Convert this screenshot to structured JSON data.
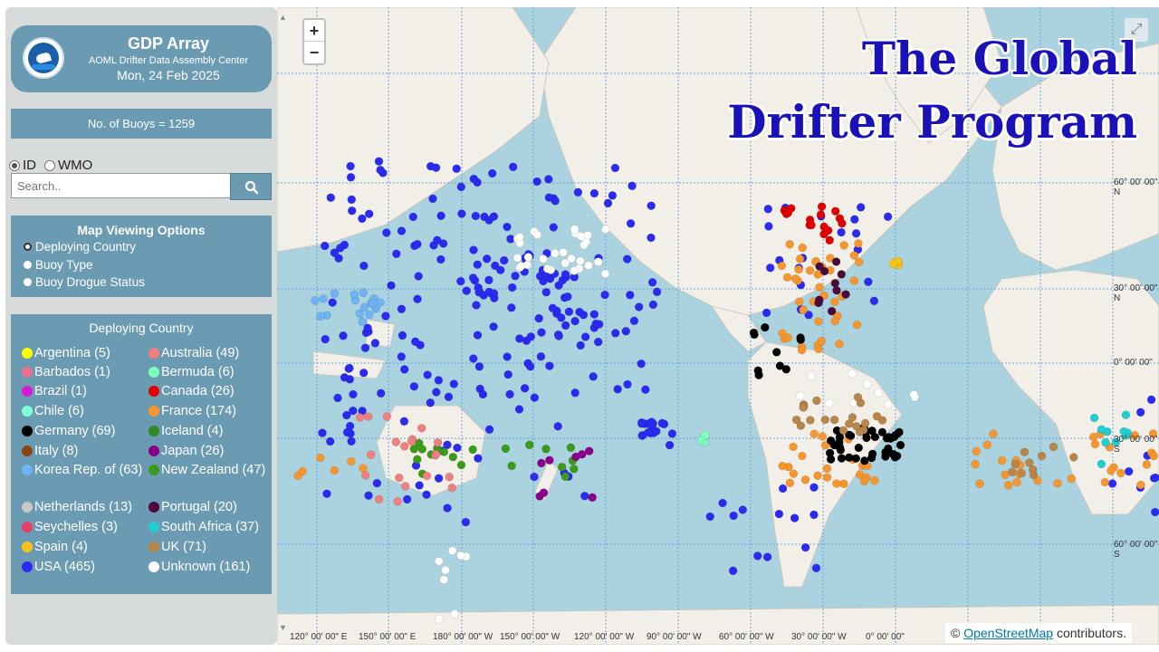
{
  "header": {
    "title": "GDP Array",
    "subtitle": "AOML Drifter Data Assembly Center",
    "date": "Mon, 24 Feb 2025"
  },
  "buoy_count": "No. of Buoys = 1259",
  "id_toggle": {
    "option_id": "ID",
    "option_wmo": "WMO",
    "selected": "ID"
  },
  "search": {
    "placeholder": "Search.."
  },
  "view_options": {
    "title": "Map Viewing Options",
    "options": [
      "Deploying Country",
      "Buoy Type",
      "Buoy Drogue Status"
    ],
    "selected": "Deploying Country"
  },
  "legend": {
    "title": "Deploying Country",
    "items": [
      {
        "label": "Argentina (5)",
        "color": "#ffff00"
      },
      {
        "label": "Australia (49)",
        "color": "#f08080"
      },
      {
        "label": "Barbados (1)",
        "color": "#e8728e"
      },
      {
        "label": "Bermuda (6)",
        "color": "#7fffbf"
      },
      {
        "label": "Brazil (1)",
        "color": "#d61ad6"
      },
      {
        "label": "Canada (26)",
        "color": "#e00000"
      },
      {
        "label": "Chile (6)",
        "color": "#7fffd4"
      },
      {
        "label": "France (174)",
        "color": "#f7962e"
      },
      {
        "label": "Germany (69)",
        "color": "#000000"
      },
      {
        "label": "Iceland (4)",
        "color": "#2e8b22"
      },
      {
        "label": "Italy (8)",
        "color": "#8b4513"
      },
      {
        "label": "Japan (26)",
        "color": "#8b008b"
      },
      {
        "label": "Korea Rep. of (63)",
        "color": "#6fb3f5"
      },
      {
        "label": "New Zealand (47)",
        "color": "#3a9a1a"
      },
      {
        "label": "Netherlands (13)",
        "color": "#c8c8c8"
      },
      {
        "label": "Portugal (20)",
        "color": "#4b0a3c"
      },
      {
        "label": "Seychelles (3)",
        "color": "#e83e6a"
      },
      {
        "label": "South Africa (37)",
        "color": "#1fcfcf"
      },
      {
        "label": "Spain (4)",
        "color": "#f7c51a"
      },
      {
        "label": "UK (71)",
        "color": "#b8864a"
      },
      {
        "label": "USA (465)",
        "color": "#2a2af0"
      },
      {
        "label": "Unknown (161)",
        "color": "#ffffff"
      }
    ]
  },
  "map": {
    "overlay_title_line1": "The Global",
    "overlay_title_line2": "Drifter Program",
    "zoom_in": "+",
    "zoom_out": "−",
    "lat_labels": [
      "60° 00' 00\" N",
      "30° 00' 00\" N",
      "0° 00' 00\"",
      "30° 00' 00\" S",
      "60° 00' 00\" S"
    ],
    "lon_labels": [
      "120° 00' 00\" E",
      "150° 00' 00\" E",
      "180° 00' 00\" W",
      "150° 00' 00\" W",
      "120° 00' 00\" W",
      "90° 00' 00\" W",
      "60° 00' 00\" W",
      "30° 00' 00\" W",
      "0° 00' 00\""
    ],
    "attribution_prefix": "©",
    "attribution_link": "OpenStreetMap",
    "attribution_suffix": "contributors."
  }
}
